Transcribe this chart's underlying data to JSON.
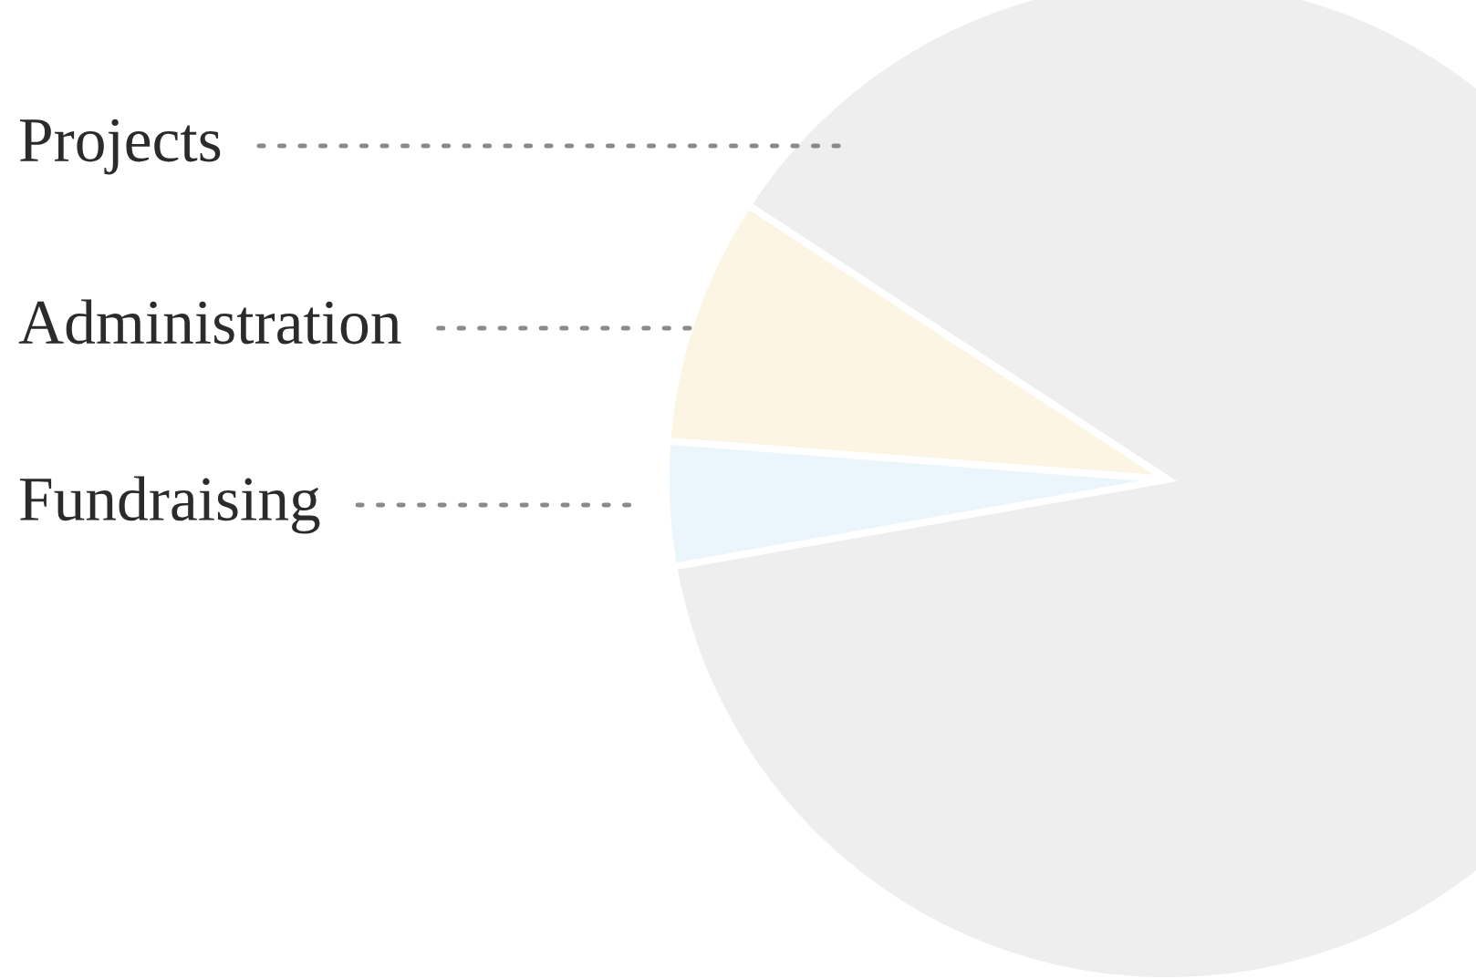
{
  "chart_data": {
    "type": "pie",
    "categories": [
      "Projects",
      "Administration",
      "Fundraising"
    ],
    "values": [
      88,
      8,
      4
    ],
    "colors": [
      "#eeeeee",
      "#fdf5e3",
      "#eaf5fc"
    ]
  }
}
